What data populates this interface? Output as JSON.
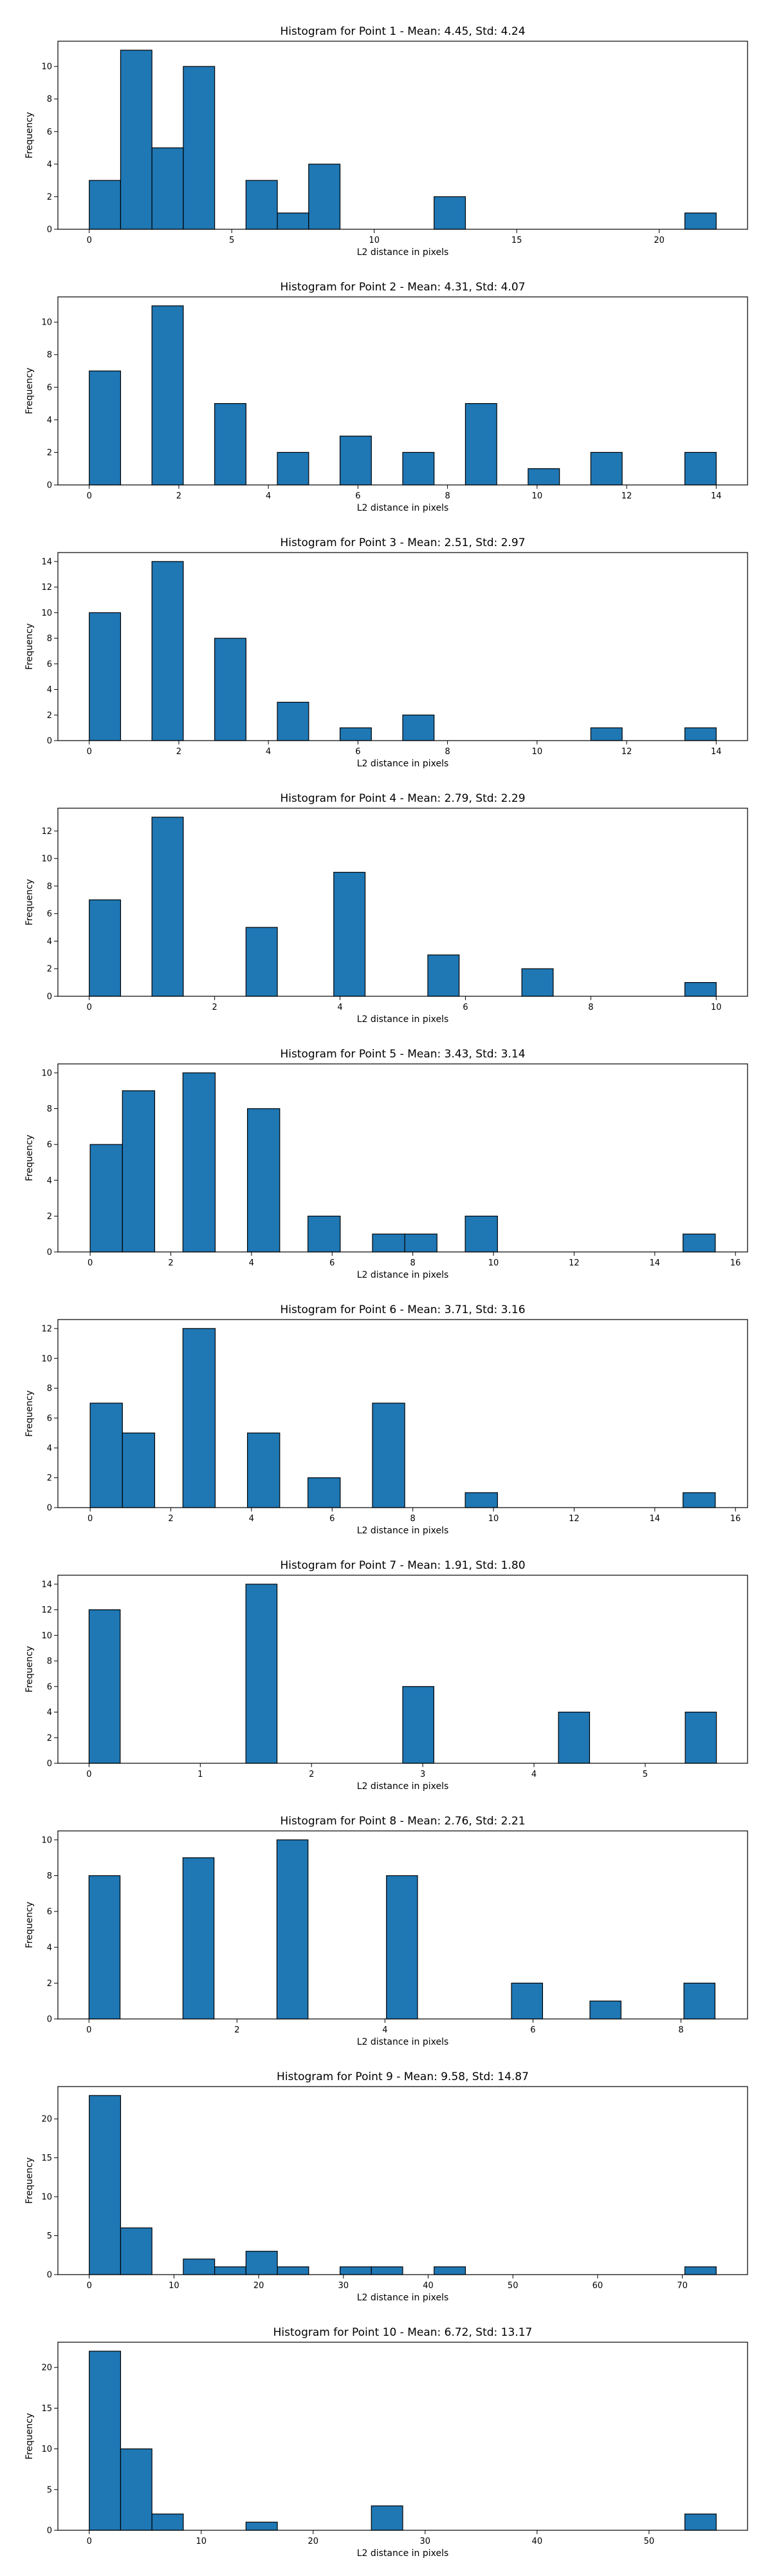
{
  "chart_data": [
    {
      "type": "bar",
      "title": "Histogram for Point 1 - Mean: 4.45, Std: 4.24",
      "xlabel": "L2 distance in pixels",
      "ylabel": "Frequency",
      "xlim": [
        -1.1,
        23.1
      ],
      "ylim": [
        0,
        11.55
      ],
      "xticks": [
        0,
        5,
        10,
        15,
        20
      ],
      "xtick_labels": [
        "0",
        "5",
        "10",
        "15",
        "20"
      ],
      "yticks": [
        0,
        2,
        4,
        6,
        8,
        10
      ],
      "ytick_labels": [
        "0",
        "2",
        "4",
        "6",
        "8",
        "10"
      ],
      "bins": [
        {
          "x0": 0.0,
          "x1": 1.1,
          "count": 3
        },
        {
          "x0": 1.1,
          "x1": 2.2,
          "count": 11
        },
        {
          "x0": 2.2,
          "x1": 3.3,
          "count": 5
        },
        {
          "x0": 3.3,
          "x1": 4.4,
          "count": 10
        },
        {
          "x0": 5.5,
          "x1": 6.6,
          "count": 3
        },
        {
          "x0": 6.6,
          "x1": 7.7,
          "count": 1
        },
        {
          "x0": 7.7,
          "x1": 8.8,
          "count": 4
        },
        {
          "x0": 12.1,
          "x1": 13.2,
          "count": 2
        },
        {
          "x0": 20.9,
          "x1": 22.0,
          "count": 1
        }
      ],
      "bar_color": "#1f77b4",
      "edge_color": "#000000"
    },
    {
      "type": "bar",
      "title": "Histogram for Point 2 - Mean: 4.31, Std: 4.07",
      "xlabel": "L2 distance in pixels",
      "ylabel": "Frequency",
      "xlim": [
        -0.7,
        14.7
      ],
      "ylim": [
        0,
        11.55
      ],
      "xticks": [
        0,
        2,
        4,
        6,
        8,
        10,
        12,
        14
      ],
      "xtick_labels": [
        "0",
        "2",
        "4",
        "6",
        "8",
        "10",
        "12",
        "14"
      ],
      "yticks": [
        0,
        2,
        4,
        6,
        8,
        10
      ],
      "ytick_labels": [
        "0",
        "2",
        "4",
        "6",
        "8",
        "10"
      ],
      "bins": [
        {
          "x0": 0.0,
          "x1": 0.7,
          "count": 7
        },
        {
          "x0": 1.4,
          "x1": 2.1,
          "count": 11
        },
        {
          "x0": 2.8,
          "x1": 3.5,
          "count": 5
        },
        {
          "x0": 4.2,
          "x1": 4.9,
          "count": 2
        },
        {
          "x0": 5.6,
          "x1": 6.3,
          "count": 3
        },
        {
          "x0": 7.0,
          "x1": 7.7,
          "count": 2
        },
        {
          "x0": 8.4,
          "x1": 9.1,
          "count": 5
        },
        {
          "x0": 9.8,
          "x1": 10.5,
          "count": 1
        },
        {
          "x0": 11.2,
          "x1": 11.9,
          "count": 2
        },
        {
          "x0": 13.3,
          "x1": 14.0,
          "count": 2
        }
      ],
      "bar_color": "#1f77b4",
      "edge_color": "#000000"
    },
    {
      "type": "bar",
      "title": "Histogram for Point 3 - Mean: 2.51, Std: 2.97",
      "xlabel": "L2 distance in pixels",
      "ylabel": "Frequency",
      "xlim": [
        -0.7,
        14.7
      ],
      "ylim": [
        0,
        14.7
      ],
      "xticks": [
        0,
        2,
        4,
        6,
        8,
        10,
        12,
        14
      ],
      "xtick_labels": [
        "0",
        "2",
        "4",
        "6",
        "8",
        "10",
        "12",
        "14"
      ],
      "yticks": [
        0,
        2,
        4,
        6,
        8,
        10,
        12,
        14
      ],
      "ytick_labels": [
        "0",
        "2",
        "4",
        "6",
        "8",
        "10",
        "12",
        "14"
      ],
      "bins": [
        {
          "x0": 0.0,
          "x1": 0.7,
          "count": 10
        },
        {
          "x0": 1.4,
          "x1": 2.1,
          "count": 14
        },
        {
          "x0": 2.8,
          "x1": 3.5,
          "count": 8
        },
        {
          "x0": 4.2,
          "x1": 4.9,
          "count": 3
        },
        {
          "x0": 5.6,
          "x1": 6.3,
          "count": 1
        },
        {
          "x0": 7.0,
          "x1": 7.7,
          "count": 2
        },
        {
          "x0": 11.2,
          "x1": 11.9,
          "count": 1
        },
        {
          "x0": 13.3,
          "x1": 14.0,
          "count": 1
        }
      ],
      "bar_color": "#1f77b4",
      "edge_color": "#000000"
    },
    {
      "type": "bar",
      "title": "Histogram for Point 4 - Mean: 2.79, Std: 2.29",
      "xlabel": "L2 distance in pixels",
      "ylabel": "Frequency",
      "xlim": [
        -0.5,
        10.5
      ],
      "ylim": [
        0,
        13.65
      ],
      "xticks": [
        0,
        2,
        4,
        6,
        8,
        10
      ],
      "xtick_labels": [
        "0",
        "2",
        "4",
        "6",
        "8",
        "10"
      ],
      "yticks": [
        0,
        2,
        4,
        6,
        8,
        10,
        12
      ],
      "ytick_labels": [
        "0",
        "2",
        "4",
        "6",
        "8",
        "10",
        "12"
      ],
      "bins": [
        {
          "x0": 0.0,
          "x1": 0.5,
          "count": 7
        },
        {
          "x0": 1.0,
          "x1": 1.5,
          "count": 13
        },
        {
          "x0": 2.5,
          "x1": 3.0,
          "count": 5
        },
        {
          "x0": 3.9,
          "x1": 4.4,
          "count": 9
        },
        {
          "x0": 5.4,
          "x1": 5.9,
          "count": 3
        },
        {
          "x0": 6.9,
          "x1": 7.4,
          "count": 2
        },
        {
          "x0": 9.5,
          "x1": 10.0,
          "count": 1
        }
      ],
      "bar_color": "#1f77b4",
      "edge_color": "#000000"
    },
    {
      "type": "bar",
      "title": "Histogram for Point 5 - Mean: 3.43, Std: 3.14",
      "xlabel": "L2 distance in pixels",
      "ylabel": "Frequency",
      "xlim": [
        -0.8,
        16.3
      ],
      "ylim": [
        0,
        10.5
      ],
      "xticks": [
        0,
        2,
        4,
        6,
        8,
        10,
        12,
        14,
        16
      ],
      "xtick_labels": [
        "0",
        "2",
        "4",
        "6",
        "8",
        "10",
        "12",
        "14",
        "16"
      ],
      "yticks": [
        0,
        2,
        4,
        6,
        8,
        10
      ],
      "ytick_labels": [
        "0",
        "2",
        "4",
        "6",
        "8",
        "10"
      ],
      "bins": [
        {
          "x0": 0.0,
          "x1": 0.8,
          "count": 6
        },
        {
          "x0": 0.8,
          "x1": 1.6,
          "count": 9
        },
        {
          "x0": 2.3,
          "x1": 3.1,
          "count": 10
        },
        {
          "x0": 3.9,
          "x1": 4.7,
          "count": 8
        },
        {
          "x0": 5.4,
          "x1": 6.2,
          "count": 2
        },
        {
          "x0": 7.0,
          "x1": 7.8,
          "count": 1
        },
        {
          "x0": 7.8,
          "x1": 8.6,
          "count": 1
        },
        {
          "x0": 9.3,
          "x1": 10.1,
          "count": 2
        },
        {
          "x0": 14.7,
          "x1": 15.5,
          "count": 1
        }
      ],
      "bar_color": "#1f77b4",
      "edge_color": "#000000"
    },
    {
      "type": "bar",
      "title": "Histogram for Point 6 - Mean: 3.71, Std: 3.16",
      "xlabel": "L2 distance in pixels",
      "ylabel": "Frequency",
      "xlim": [
        -0.8,
        16.3
      ],
      "ylim": [
        0,
        12.6
      ],
      "xticks": [
        0,
        2,
        4,
        6,
        8,
        10,
        12,
        14,
        16
      ],
      "xtick_labels": [
        "0",
        "2",
        "4",
        "6",
        "8",
        "10",
        "12",
        "14",
        "16"
      ],
      "yticks": [
        0,
        2,
        4,
        6,
        8,
        10,
        12
      ],
      "ytick_labels": [
        "0",
        "2",
        "4",
        "6",
        "8",
        "10",
        "12"
      ],
      "bins": [
        {
          "x0": 0.0,
          "x1": 0.8,
          "count": 7
        },
        {
          "x0": 0.8,
          "x1": 1.6,
          "count": 5
        },
        {
          "x0": 2.3,
          "x1": 3.1,
          "count": 12
        },
        {
          "x0": 3.9,
          "x1": 4.7,
          "count": 5
        },
        {
          "x0": 5.4,
          "x1": 6.2,
          "count": 2
        },
        {
          "x0": 7.0,
          "x1": 7.8,
          "count": 7
        },
        {
          "x0": 9.3,
          "x1": 10.1,
          "count": 1
        },
        {
          "x0": 14.7,
          "x1": 15.5,
          "count": 1
        }
      ],
      "bar_color": "#1f77b4",
      "edge_color": "#000000"
    },
    {
      "type": "bar",
      "title": "Histogram for Point 7 - Mean: 1.91, Std: 1.80",
      "xlabel": "L2 distance in pixels",
      "ylabel": "Frequency",
      "xlim": [
        -0.28,
        5.92
      ],
      "ylim": [
        0,
        14.7
      ],
      "xticks": [
        0,
        1,
        2,
        3,
        4,
        5
      ],
      "xtick_labels": [
        "0",
        "1",
        "2",
        "3",
        "4",
        "5"
      ],
      "yticks": [
        0,
        2,
        4,
        6,
        8,
        10,
        12,
        14
      ],
      "ytick_labels": [
        "0",
        "2",
        "4",
        "6",
        "8",
        "10",
        "12",
        "14"
      ],
      "bins": [
        {
          "x0": 0.0,
          "x1": 0.28,
          "count": 12
        },
        {
          "x0": 1.41,
          "x1": 1.69,
          "count": 14
        },
        {
          "x0": 2.82,
          "x1": 3.1,
          "count": 6
        },
        {
          "x0": 4.22,
          "x1": 4.5,
          "count": 4
        },
        {
          "x0": 5.36,
          "x1": 5.64,
          "count": 4
        }
      ],
      "bar_color": "#1f77b4",
      "edge_color": "#000000"
    },
    {
      "type": "bar",
      "title": "Histogram for Point 8 - Mean: 2.76, Std: 2.21",
      "xlabel": "L2 distance in pixels",
      "ylabel": "Frequency",
      "xlim": [
        -0.42,
        8.9
      ],
      "ylim": [
        0,
        10.5
      ],
      "xticks": [
        0,
        2,
        4,
        6,
        8
      ],
      "xtick_labels": [
        "0",
        "2",
        "4",
        "6",
        "8"
      ],
      "yticks": [
        0,
        2,
        4,
        6,
        8,
        10
      ],
      "ytick_labels": [
        "0",
        "2",
        "4",
        "6",
        "8",
        "10"
      ],
      "bins": [
        {
          "x0": 0.0,
          "x1": 0.42,
          "count": 8
        },
        {
          "x0": 1.27,
          "x1": 1.69,
          "count": 9
        },
        {
          "x0": 2.54,
          "x1": 2.96,
          "count": 10
        },
        {
          "x0": 4.02,
          "x1": 4.44,
          "count": 8
        },
        {
          "x0": 5.71,
          "x1": 6.13,
          "count": 2
        },
        {
          "x0": 6.77,
          "x1": 7.19,
          "count": 1
        },
        {
          "x0": 8.04,
          "x1": 8.46,
          "count": 2
        }
      ],
      "bar_color": "#1f77b4",
      "edge_color": "#000000"
    },
    {
      "type": "bar",
      "title": "Histogram for Point 9 - Mean: 9.58, Std: 14.87",
      "xlabel": "L2 distance in pixels",
      "ylabel": "Frequency",
      "xlim": [
        -3.7,
        77.7
      ],
      "ylim": [
        0,
        24.15
      ],
      "xticks": [
        0,
        10,
        20,
        30,
        40,
        50,
        60,
        70
      ],
      "xtick_labels": [
        "0",
        "10",
        "20",
        "30",
        "40",
        "50",
        "60",
        "70"
      ],
      "yticks": [
        0,
        5,
        10,
        15,
        20
      ],
      "ytick_labels": [
        "0",
        "5",
        "10",
        "15",
        "20"
      ],
      "bins": [
        {
          "x0": 0.0,
          "x1": 3.7,
          "count": 23
        },
        {
          "x0": 3.7,
          "x1": 7.4,
          "count": 6
        },
        {
          "x0": 11.1,
          "x1": 14.8,
          "count": 2
        },
        {
          "x0": 14.8,
          "x1": 18.5,
          "count": 1
        },
        {
          "x0": 18.5,
          "x1": 22.2,
          "count": 3
        },
        {
          "x0": 22.2,
          "x1": 25.9,
          "count": 1
        },
        {
          "x0": 29.6,
          "x1": 33.3,
          "count": 1
        },
        {
          "x0": 33.3,
          "x1": 37.0,
          "count": 1
        },
        {
          "x0": 40.7,
          "x1": 44.4,
          "count": 1
        },
        {
          "x0": 70.3,
          "x1": 74.0,
          "count": 1
        }
      ],
      "bar_color": "#1f77b4",
      "edge_color": "#000000"
    },
    {
      "type": "bar",
      "title": "Histogram for Point 10 - Mean: 6.72, Std: 13.17",
      "xlabel": "L2 distance in pixels",
      "ylabel": "Frequency",
      "xlim": [
        -2.8,
        58.8
      ],
      "ylim": [
        0,
        23.1
      ],
      "xticks": [
        0,
        10,
        20,
        30,
        40,
        50
      ],
      "xtick_labels": [
        "0",
        "10",
        "20",
        "30",
        "40",
        "50"
      ],
      "yticks": [
        0,
        5,
        10,
        15,
        20
      ],
      "ytick_labels": [
        "0",
        "5",
        "10",
        "15",
        "20"
      ],
      "bins": [
        {
          "x0": 0.0,
          "x1": 2.8,
          "count": 22
        },
        {
          "x0": 2.8,
          "x1": 5.6,
          "count": 10
        },
        {
          "x0": 5.6,
          "x1": 8.4,
          "count": 2
        },
        {
          "x0": 14.0,
          "x1": 16.8,
          "count": 1
        },
        {
          "x0": 25.2,
          "x1": 28.0,
          "count": 3
        },
        {
          "x0": 53.2,
          "x1": 56.0,
          "count": 2
        }
      ],
      "bar_color": "#1f77b4",
      "edge_color": "#000000"
    }
  ]
}
